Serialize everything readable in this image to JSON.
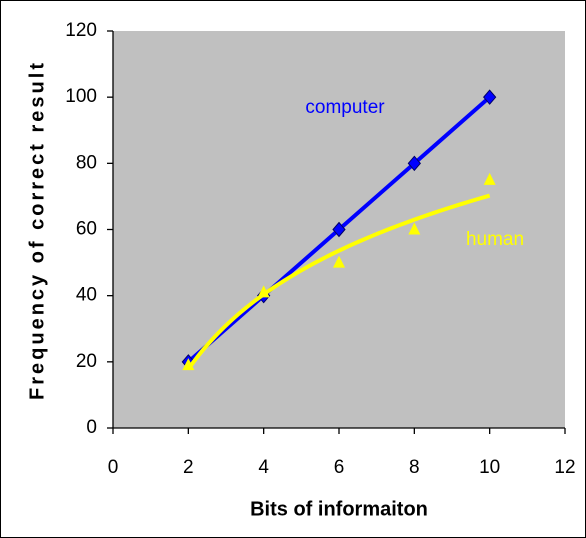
{
  "chart_data": {
    "type": "line",
    "x_label": "Bits of informaiton",
    "y_label": "Frequency of correct result",
    "xlim": [
      0,
      12
    ],
    "xticks": [
      0,
      2,
      4,
      6,
      8,
      10,
      12
    ],
    "ylim": [
      0,
      120
    ],
    "yticks": [
      0,
      20,
      40,
      60,
      80,
      100,
      120
    ],
    "background": "#c0c0c0",
    "series": [
      {
        "name": "computer",
        "color": "#0000ff",
        "marker": "diamond",
        "line": true,
        "x": [
          2,
          4,
          6,
          8,
          10
        ],
        "values": [
          20,
          40,
          60,
          80,
          100
        ]
      },
      {
        "name": "human",
        "color": "#ffff00",
        "marker": "triangle",
        "line": false,
        "trendline": "logarithmic",
        "x": [
          2,
          4,
          6,
          8,
          10
        ],
        "values": [
          19,
          41,
          50,
          60,
          75
        ]
      }
    ]
  }
}
